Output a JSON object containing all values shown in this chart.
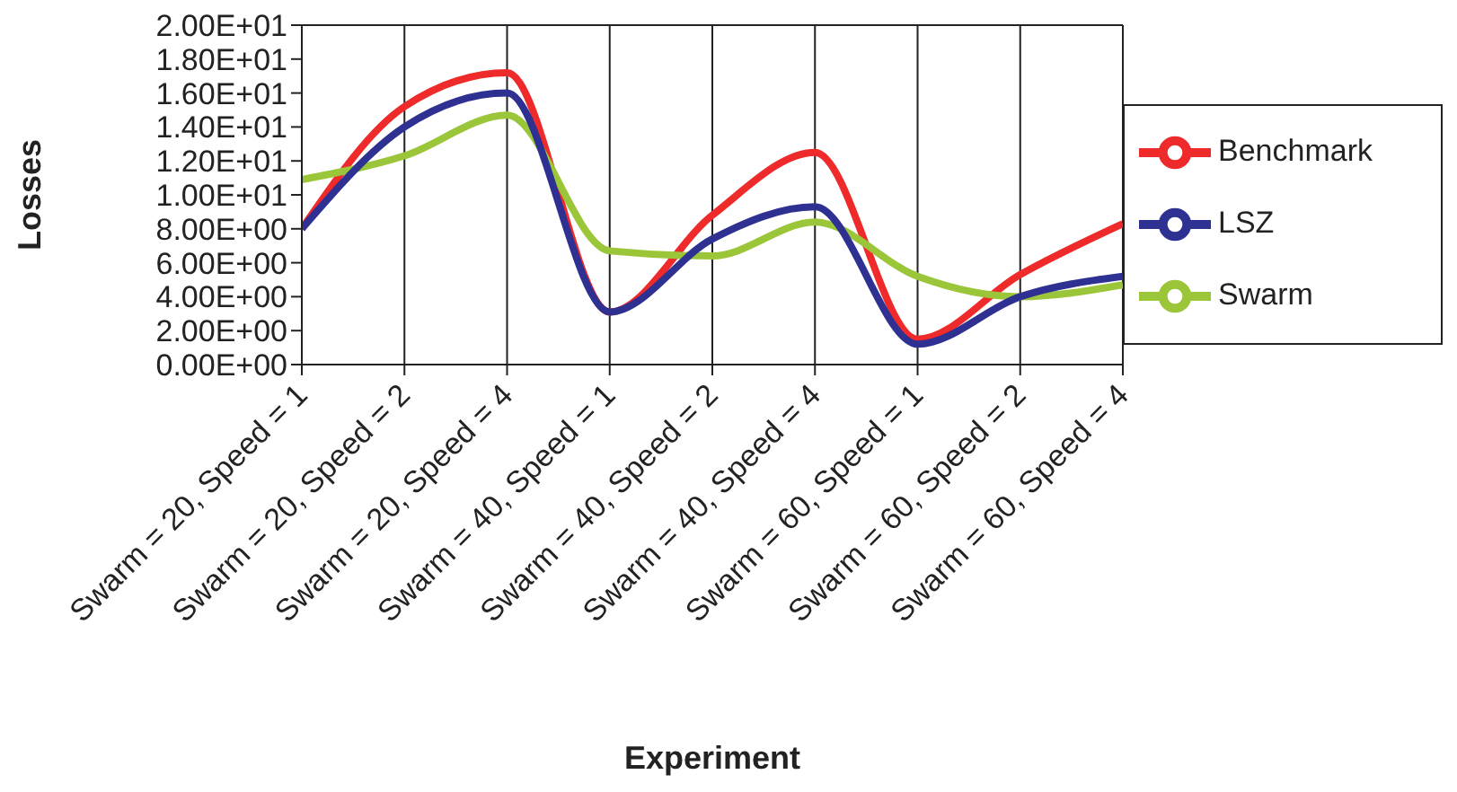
{
  "chart_data": {
    "type": "line",
    "xlabel": "Experiment",
    "ylabel": "Losses",
    "categories": [
      "Swarm = 20, Speed = 1",
      "Swarm = 20, Speed = 2",
      "Swarm = 20, Speed = 4",
      "Swarm = 40, Speed = 1",
      "Swarm = 40, Speed = 2",
      "Swarm = 40, Speed = 4",
      "Swarm = 60, Speed = 1",
      "Swarm = 60, Speed = 2",
      "Swarm = 60, Speed = 4"
    ],
    "series": [
      {
        "name": "Benchmark",
        "color": "#ee2a2a",
        "values": [
          8.0,
          15.2,
          17.2,
          3.1,
          8.8,
          12.5,
          1.5,
          5.3,
          8.3
        ]
      },
      {
        "name": "Swarm",
        "color": "#9cc63a",
        "values": [
          10.9,
          12.3,
          14.7,
          6.7,
          6.4,
          8.4,
          5.2,
          4.0,
          4.7
        ]
      },
      {
        "name": "LSZ",
        "color": "#2e3192",
        "values": [
          8.0,
          14.0,
          16.0,
          3.1,
          7.4,
          9.3,
          1.2,
          4.0,
          5.2
        ]
      }
    ],
    "ylim": [
      0,
      20
    ],
    "yticks": [
      {
        "value": 0,
        "label": "0.00E+00"
      },
      {
        "value": 2,
        "label": "2.00E+00"
      },
      {
        "value": 4,
        "label": "4.00E+00"
      },
      {
        "value": 6,
        "label": "6.00E+00"
      },
      {
        "value": 8,
        "label": "8.00E+00"
      },
      {
        "value": 10,
        "label": "1.00E+01"
      },
      {
        "value": 12,
        "label": "1.20E+01"
      },
      {
        "value": 14,
        "label": "1.40E+01"
      },
      {
        "value": 16,
        "label": "1.60E+01"
      },
      {
        "value": 18,
        "label": "1.80E+01"
      },
      {
        "value": 20,
        "label": "2.00E+01"
      }
    ],
    "grid": true,
    "legend": "right",
    "marker": "none",
    "line_style": "solid"
  }
}
